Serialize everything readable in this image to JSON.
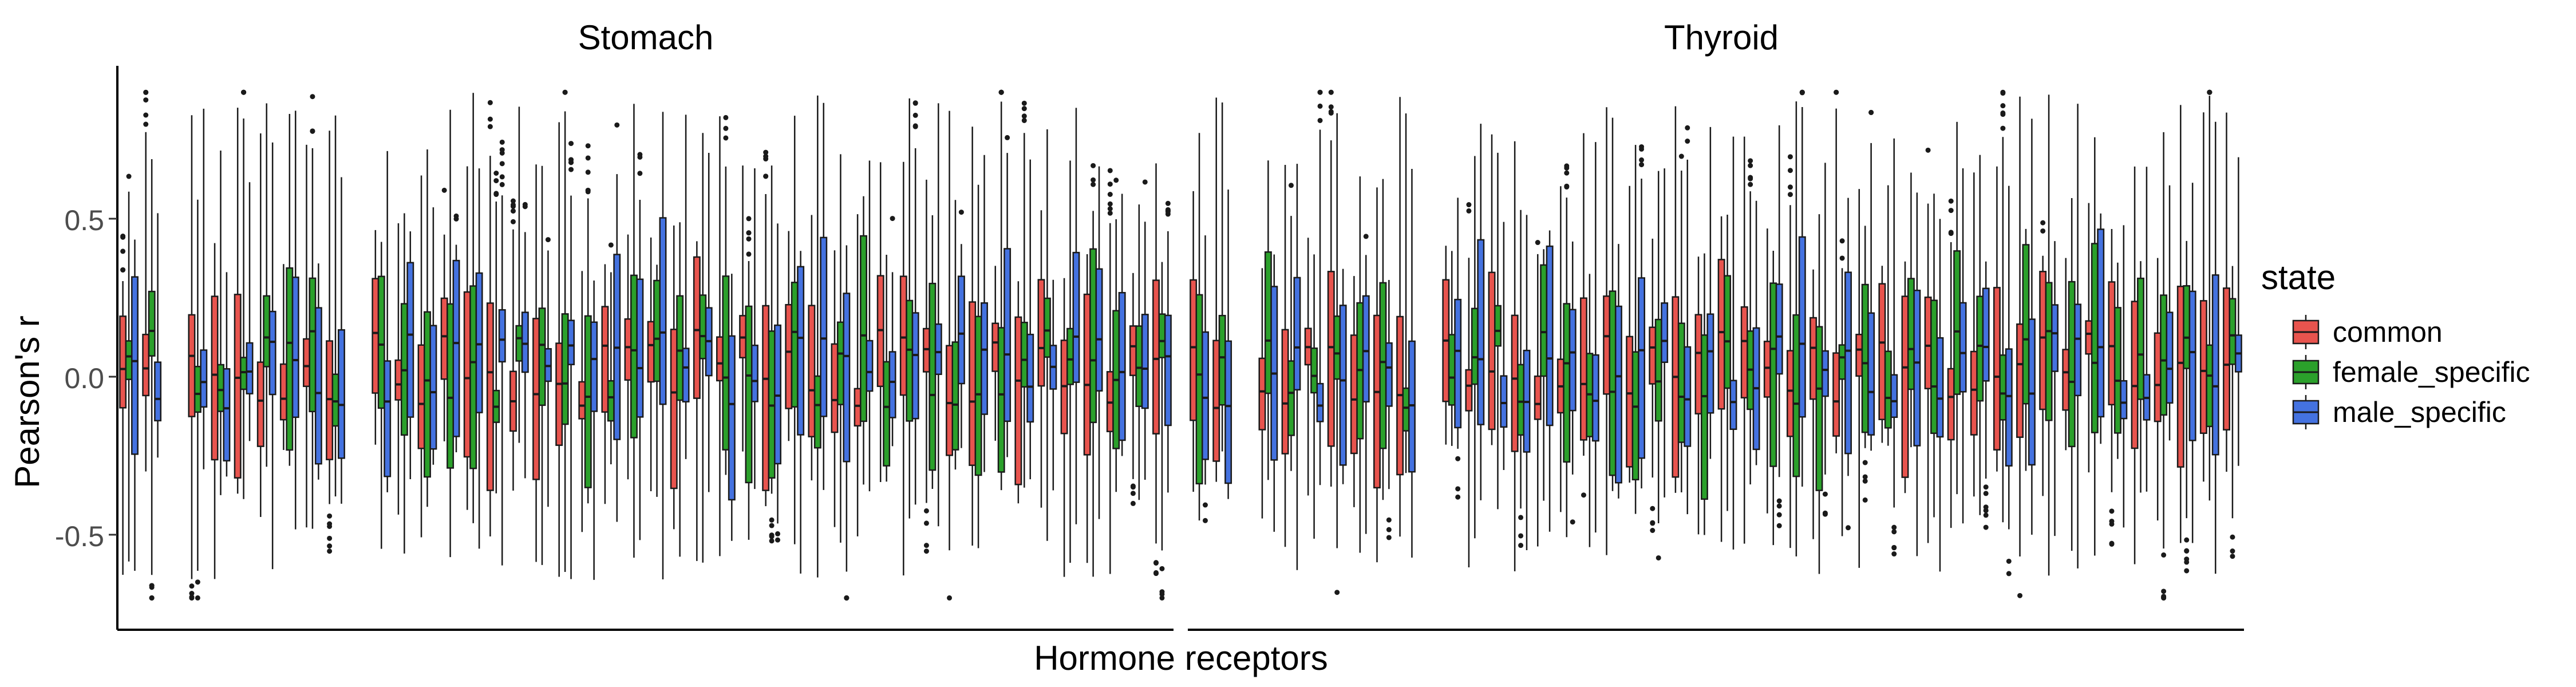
{
  "chart_data": {
    "type": "box",
    "ylabel": "Pearson's r",
    "xlabel": "Hormone receptors",
    "ylim": [
      -0.8,
      1.0
    ],
    "yticks": [
      -0.5,
      0.0,
      0.5
    ],
    "ytick_labels": [
      "-0.5",
      "0.0",
      "0.5"
    ],
    "legend": {
      "title": "state",
      "position": "right",
      "entries": [
        {
          "key": "common",
          "label": "common",
          "color": "#E8544E"
        },
        {
          "key": "female_specific",
          "label": "female_specific",
          "color": "#2BA02B"
        },
        {
          "key": "male_specific",
          "label": "male_specific",
          "color": "#4472E0"
        }
      ]
    },
    "facets": [
      {
        "title": "Stomach",
        "n_receptors": 46,
        "omitted_slots": [
          2,
          10
        ]
      },
      {
        "title": "Thyroid",
        "n_receptors": 46,
        "omitted_slots": [
          2,
          10
        ]
      }
    ],
    "box_summary": {
      "stats": [
        "q1",
        "median",
        "q3",
        "whisker_low",
        "whisker_high"
      ],
      "states": [
        "common",
        "female_specific",
        "male_specific"
      ],
      "median_range": [
        -0.1,
        0.15
      ],
      "iqr_range": [
        0.1,
        0.6
      ],
      "whisker_low_range": [
        -0.65,
        -0.2
      ],
      "whisker_high_range": [
        0.3,
        0.9
      ],
      "outliers_max": 0.9,
      "outliers_min": -0.7
    }
  }
}
